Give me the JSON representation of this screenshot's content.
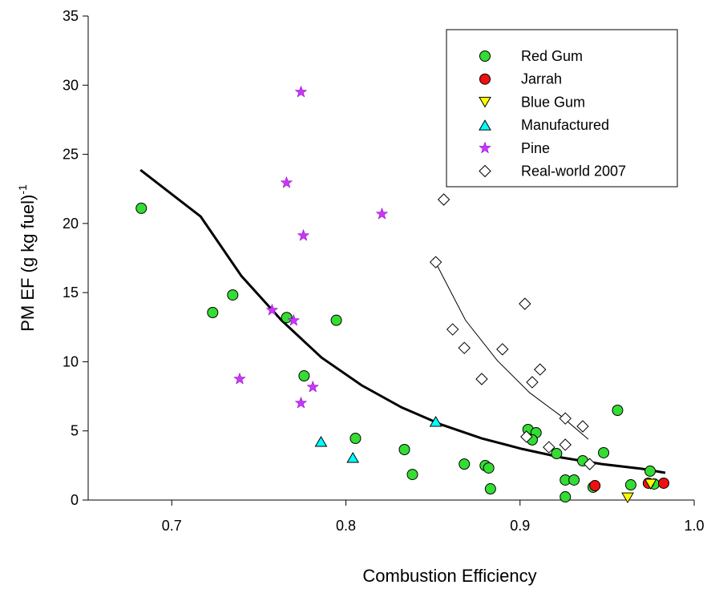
{
  "chart_data": {
    "type": "scatter",
    "xlabel": "Combustion Efficiency",
    "ylabel": "PM EF (g kg fuel)",
    "ylabel_sup": "-1",
    "xlim": [
      0.652,
      1.0
    ],
    "ylim": [
      0,
      35
    ],
    "xticks": [
      0.7,
      0.8,
      0.9,
      {
        "value": 1,
        "label": "1.0"
      }
    ],
    "yticks": [
      0,
      5,
      10,
      15,
      20,
      25,
      30,
      35
    ],
    "legend": "upper right",
    "series": [
      {
        "name": "Red Gum",
        "color": "#33dd33",
        "marker": "circle",
        "x": [
          0.6825,
          0.7235,
          0.735,
          0.766,
          0.7945,
          0.776,
          0.8055,
          0.8336,
          0.8382,
          0.868,
          0.88,
          0.882,
          0.883,
          0.9046,
          0.9092,
          0.907,
          0.921,
          0.926,
          0.931,
          0.926,
          0.936,
          0.948,
          0.956,
          0.942,
          0.9636,
          0.9747,
          0.977
        ],
        "values": [
          21.1,
          13.56,
          14.83,
          13.2,
          13.0,
          8.98,
          4.46,
          3.65,
          1.85,
          2.6,
          2.49,
          2.32,
          0.81,
          5.1,
          4.87,
          4.35,
          3.36,
          1.45,
          1.45,
          0.23,
          2.84,
          3.42,
          6.49,
          0.93,
          1.1,
          2.09,
          1.16
        ]
      },
      {
        "name": "Jarrah",
        "color": "#ee1111",
        "marker": "circle",
        "x": [
          0.943,
          0.9825,
          0.9737
        ],
        "values": [
          1.04,
          1.22,
          1.22
        ]
      },
      {
        "name": "Blue Gum",
        "color": "#ffff00",
        "marker": "triangle-down",
        "x": [
          0.9618,
          0.975
        ],
        "values": [
          0.17,
          1.16
        ]
      },
      {
        "name": "Manufactured",
        "color": "#00ffff",
        "marker": "triangle-up",
        "x": [
          0.7857,
          0.804,
          0.8516
        ],
        "values": [
          4.23,
          3.07,
          5.68
        ]
      },
      {
        "name": "Pine",
        "color": "#cc33ff",
        "marker": "star",
        "x": [
          0.7742,
          0.7659,
          0.7756,
          0.8207,
          0.7576,
          0.77,
          0.739,
          0.781,
          0.7742
        ],
        "values": [
          29.5,
          22.94,
          19.12,
          20.68,
          13.73,
          12.98,
          8.75,
          8.17,
          7.01
        ]
      },
      {
        "name": "Real-world  2007",
        "color": "#ffffff",
        "marker": "diamond",
        "x": [
          0.8562,
          0.8516,
          0.8613,
          0.868,
          0.8899,
          0.9028,
          0.878,
          0.9115,
          0.907,
          0.926,
          0.936,
          0.9037,
          0.9166,
          0.926,
          0.94
        ],
        "values": [
          21.73,
          17.2,
          12.34,
          11.0,
          10.9,
          14.19,
          8.75,
          9.44,
          8.52,
          5.9,
          5.33,
          4.58,
          3.82,
          4.0,
          2.6
        ]
      }
    ],
    "lines": [
      {
        "color": "#000000",
        "width": 3,
        "x": [
          0.682,
          0.7166,
          0.74,
          0.763,
          0.786,
          0.809,
          0.832,
          0.855,
          0.878,
          0.901,
          0.924,
          0.947,
          0.97,
          0.9834
        ],
        "values": [
          23.87,
          20.5,
          16.2,
          13.0,
          10.3,
          8.3,
          6.7,
          5.45,
          4.46,
          3.7,
          3.07,
          2.6,
          2.26,
          1.97
        ]
      },
      {
        "color": "#000000",
        "width": 1,
        "x": [
          0.8502,
          0.8687,
          0.887,
          0.9055,
          0.924,
          0.9392
        ],
        "values": [
          17.5,
          13.0,
          10.08,
          7.76,
          6.03,
          4.4
        ]
      }
    ]
  }
}
